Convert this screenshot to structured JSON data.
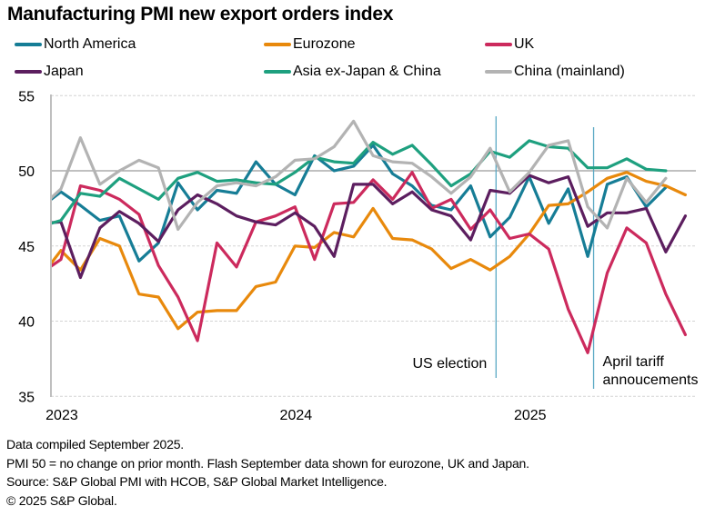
{
  "title": "Manufacturing PMI new export orders index",
  "footer": [
    "Data compiled September 2025.",
    "PMI 50 = no change on prior month. Flash September data shown for eurozone, UK and Japan.",
    "Source: S&P Global PMI with HCOB, S&P Global Market Intelligence.",
    "© 2025 S&P Global."
  ],
  "chart_data": {
    "type": "line",
    "title": "Manufacturing PMI new export orders index",
    "xlabel": "",
    "ylabel": "",
    "ylim": [
      35,
      55
    ],
    "yticks": [
      35,
      40,
      45,
      50,
      55
    ],
    "grid": true,
    "reference_line": 50,
    "legend_position": "top",
    "x_start": "Dec 2022",
    "x_end": "Sep 2025",
    "x_ticks": [
      {
        "label": "2023",
        "month_index": 1
      },
      {
        "label": "2024",
        "month_index": 13
      },
      {
        "label": "2025",
        "month_index": 25
      }
    ],
    "annotations": [
      {
        "label": "US election",
        "month_index": 23.3,
        "text_side": "left"
      },
      {
        "label": "April tariff annoucements",
        "lines": [
          "April tariff",
          "annoucements"
        ],
        "month_index": 28.3,
        "text_side": "right"
      }
    ],
    "series": [
      {
        "name": "North America",
        "color": "#167d96",
        "values": [
          47.6,
          48.6,
          47.7,
          46.7,
          47.0,
          44.0,
          45.2,
          49.2,
          47.4,
          48.7,
          48.5,
          50.6,
          49.1,
          48.4,
          51.0,
          50.0,
          50.3,
          51.7,
          49.8,
          49.0,
          47.7,
          47.4,
          49.0,
          45.6,
          46.9,
          49.6,
          46.5,
          48.8,
          44.3,
          49.1,
          49.6,
          47.6,
          48.9,
          null
        ]
      },
      {
        "name": "Eurozone",
        "color": "#e8890c",
        "values": [
          43.0,
          44.7,
          43.4,
          45.5,
          45.0,
          41.8,
          41.6,
          39.5,
          40.6,
          40.7,
          40.7,
          42.3,
          42.6,
          45.0,
          44.9,
          45.9,
          45.6,
          47.5,
          45.5,
          45.4,
          44.8,
          43.5,
          44.1,
          43.4,
          44.3,
          45.8,
          47.7,
          47.8,
          48.6,
          49.5,
          49.9,
          49.3,
          49.0,
          48.4
        ]
      },
      {
        "name": "UK",
        "color": "#cc2a5d",
        "values": [
          43.2,
          44.1,
          49.0,
          48.7,
          48.1,
          47.1,
          43.7,
          41.6,
          38.7,
          45.2,
          43.6,
          46.6,
          47.0,
          47.6,
          44.1,
          47.8,
          47.9,
          49.4,
          48.1,
          49.9,
          47.5,
          48.1,
          46.1,
          47.4,
          45.5,
          45.8,
          44.8,
          40.8,
          37.9,
          43.2,
          46.2,
          45.2,
          41.8,
          39.1
        ]
      },
      {
        "name": "Japan",
        "color": "#5c1e5f",
        "values": [
          46.5,
          46.6,
          42.9,
          46.2,
          47.3,
          46.5,
          45.3,
          47.4,
          48.4,
          47.8,
          47.0,
          46.6,
          46.4,
          47.2,
          46.3,
          44.3,
          49.1,
          49.1,
          47.8,
          48.6,
          47.4,
          47.0,
          45.4,
          48.7,
          48.5,
          49.7,
          49.2,
          49.6,
          46.3,
          47.2,
          47.2,
          47.5,
          44.6,
          47.0
        ]
      },
      {
        "name": "Asia ex-Japan & China",
        "color": "#1ea07f",
        "values": [
          46.3,
          46.7,
          48.5,
          48.3,
          49.5,
          48.8,
          48.1,
          49.5,
          49.9,
          49.3,
          49.4,
          49.2,
          49.1,
          49.9,
          50.9,
          50.6,
          50.5,
          51.9,
          51.1,
          51.7,
          50.4,
          49.0,
          49.8,
          51.3,
          50.9,
          52.0,
          51.6,
          51.5,
          50.2,
          50.2,
          50.8,
          50.1,
          50.0,
          null
        ]
      },
      {
        "name": "China (mainland)",
        "color": "#b3b3b3",
        "values": [
          47.6,
          48.8,
          52.2,
          49.1,
          50.0,
          50.7,
          50.2,
          46.1,
          47.9,
          49.0,
          49.2,
          49.0,
          49.6,
          50.7,
          50.8,
          51.6,
          53.3,
          51.0,
          50.6,
          50.5,
          49.6,
          48.5,
          49.6,
          51.5,
          48.6,
          49.9,
          51.7,
          52.0,
          47.6,
          46.2,
          49.5,
          47.9,
          49.5,
          null
        ]
      }
    ]
  }
}
